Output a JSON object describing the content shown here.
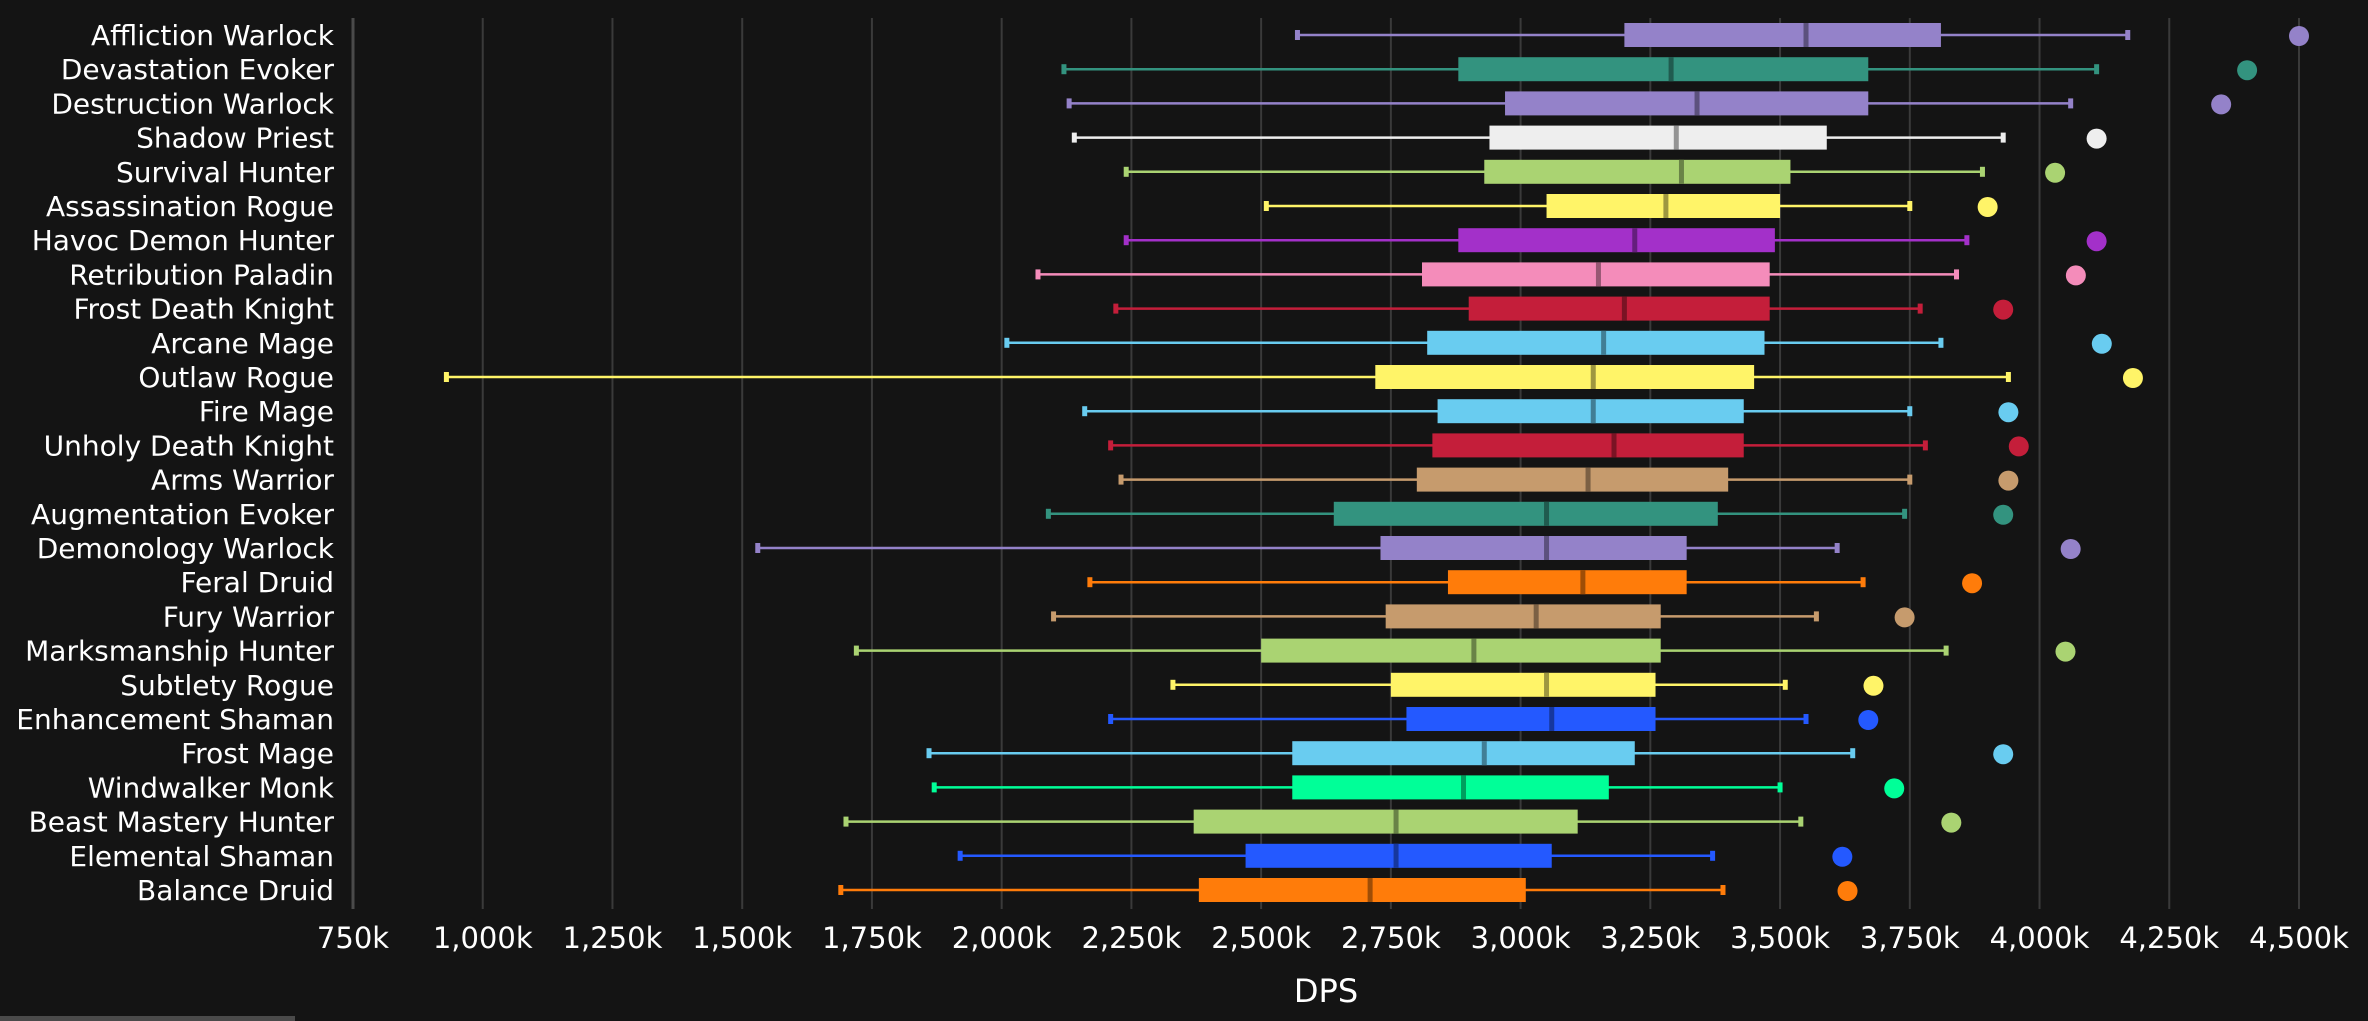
{
  "chart_data": {
    "type": "box",
    "orientation": "horizontal",
    "xlabel": "DPS",
    "xlim": [
      750000,
      4500000
    ],
    "xticks": [
      750000,
      1000000,
      1250000,
      1500000,
      1750000,
      2000000,
      2250000,
      2500000,
      2750000,
      3000000,
      3250000,
      3500000,
      3750000,
      4000000,
      4250000,
      4500000
    ],
    "xtick_labels": [
      "750k",
      "1,000k",
      "1,250k",
      "1,500k",
      "1,750k",
      "2,000k",
      "2,250k",
      "2,500k",
      "2,750k",
      "3,000k",
      "3,250k",
      "3,500k",
      "3,750k",
      "4,000k",
      "4,250k",
      "4,500k"
    ],
    "grid": true,
    "series": [
      {
        "name": "Affliction Warlock",
        "color": "#9482C9",
        "min": 2570000,
        "q1": 3200000,
        "median": 3550000,
        "q3": 3810000,
        "max": 4170000,
        "max_point": 4500000
      },
      {
        "name": "Devastation Evoker",
        "color": "#33937F",
        "min": 2120000,
        "q1": 2880000,
        "median": 3290000,
        "q3": 3670000,
        "max": 4110000,
        "max_point": 4400000
      },
      {
        "name": "Destruction Warlock",
        "color": "#9482C9",
        "min": 2130000,
        "q1": 2970000,
        "median": 3340000,
        "q3": 3670000,
        "max": 4060000,
        "max_point": 4350000
      },
      {
        "name": "Shadow Priest",
        "color": "#EEEEEE",
        "min": 2140000,
        "q1": 2940000,
        "median": 3300000,
        "q3": 3590000,
        "max": 3930000,
        "max_point": 4110000
      },
      {
        "name": "Survival Hunter",
        "color": "#AAD372",
        "min": 2240000,
        "q1": 2930000,
        "median": 3310000,
        "q3": 3520000,
        "max": 3890000,
        "max_point": 4030000
      },
      {
        "name": "Assassination Rogue",
        "color": "#FFF468",
        "min": 2510000,
        "q1": 3050000,
        "median": 3280000,
        "q3": 3500000,
        "max": 3750000,
        "max_point": 3900000
      },
      {
        "name": "Havoc Demon Hunter",
        "color": "#A330C9",
        "min": 2240000,
        "q1": 2880000,
        "median": 3220000,
        "q3": 3490000,
        "max": 3860000,
        "max_point": 4110000
      },
      {
        "name": "Retribution Paladin",
        "color": "#F48CBA",
        "min": 2070000,
        "q1": 2810000,
        "median": 3150000,
        "q3": 3480000,
        "max": 3840000,
        "max_point": 4070000
      },
      {
        "name": "Frost Death Knight",
        "color": "#C41E3A",
        "min": 2220000,
        "q1": 2900000,
        "median": 3200000,
        "q3": 3480000,
        "max": 3770000,
        "max_point": 3930000
      },
      {
        "name": "Arcane Mage",
        "color": "#69CCF0",
        "min": 2010000,
        "q1": 2820000,
        "median": 3160000,
        "q3": 3470000,
        "max": 3810000,
        "max_point": 4120000
      },
      {
        "name": "Outlaw Rogue",
        "color": "#FFF468",
        "min": 930000,
        "q1": 2720000,
        "median": 3140000,
        "q3": 3450000,
        "max": 3940000,
        "max_point": 4180000
      },
      {
        "name": "Fire Mage",
        "color": "#69CCF0",
        "min": 2160000,
        "q1": 2840000,
        "median": 3140000,
        "q3": 3430000,
        "max": 3750000,
        "max_point": 3940000
      },
      {
        "name": "Unholy Death Knight",
        "color": "#C41E3A",
        "min": 2210000,
        "q1": 2830000,
        "median": 3180000,
        "q3": 3430000,
        "max": 3780000,
        "max_point": 3960000
      },
      {
        "name": "Arms Warrior",
        "color": "#C69B6D",
        "min": 2230000,
        "q1": 2800000,
        "median": 3130000,
        "q3": 3400000,
        "max": 3750000,
        "max_point": 3940000
      },
      {
        "name": "Augmentation Evoker",
        "color": "#33937F",
        "min": 2090000,
        "q1": 2640000,
        "median": 3050000,
        "q3": 3380000,
        "max": 3740000,
        "max_point": 3930000
      },
      {
        "name": "Demonology Warlock",
        "color": "#9482C9",
        "min": 1530000,
        "q1": 2730000,
        "median": 3050000,
        "q3": 3320000,
        "max": 3610000,
        "max_point": 4060000
      },
      {
        "name": "Feral Druid",
        "color": "#FF7C0A",
        "min": 2170000,
        "q1": 2860000,
        "median": 3120000,
        "q3": 3320000,
        "max": 3660000,
        "max_point": 3870000
      },
      {
        "name": "Fury Warrior",
        "color": "#C69B6D",
        "min": 2100000,
        "q1": 2740000,
        "median": 3030000,
        "q3": 3270000,
        "max": 3570000,
        "max_point": 3740000
      },
      {
        "name": "Marksmanship Hunter",
        "color": "#AAD372",
        "min": 1720000,
        "q1": 2500000,
        "median": 2910000,
        "q3": 3270000,
        "max": 3820000,
        "max_point": 4050000
      },
      {
        "name": "Subtlety Rogue",
        "color": "#FFF468",
        "min": 2330000,
        "q1": 2750000,
        "median": 3050000,
        "q3": 3260000,
        "max": 3510000,
        "max_point": 3680000
      },
      {
        "name": "Enhancement Shaman",
        "color": "#2459FF",
        "min": 2210000,
        "q1": 2780000,
        "median": 3060000,
        "q3": 3260000,
        "max": 3550000,
        "max_point": 3670000
      },
      {
        "name": "Frost Mage",
        "color": "#69CCF0",
        "min": 1860000,
        "q1": 2560000,
        "median": 2930000,
        "q3": 3220000,
        "max": 3640000,
        "max_point": 3930000
      },
      {
        "name": "Windwalker Monk",
        "color": "#00FF98",
        "min": 1870000,
        "q1": 2560000,
        "median": 2890000,
        "q3": 3170000,
        "max": 3500000,
        "max_point": 3720000
      },
      {
        "name": "Beast Mastery Hunter",
        "color": "#AAD372",
        "min": 1700000,
        "q1": 2370000,
        "median": 2760000,
        "q3": 3110000,
        "max": 3540000,
        "max_point": 3830000
      },
      {
        "name": "Elemental Shaman",
        "color": "#2459FF",
        "min": 1920000,
        "q1": 2470000,
        "median": 2760000,
        "q3": 3060000,
        "max": 3370000,
        "max_point": 3620000
      },
      {
        "name": "Balance Druid",
        "color": "#FF7C0A",
        "min": 1690000,
        "q1": 2380000,
        "median": 2710000,
        "q3": 3010000,
        "max": 3390000,
        "max_point": 3630000
      }
    ]
  }
}
